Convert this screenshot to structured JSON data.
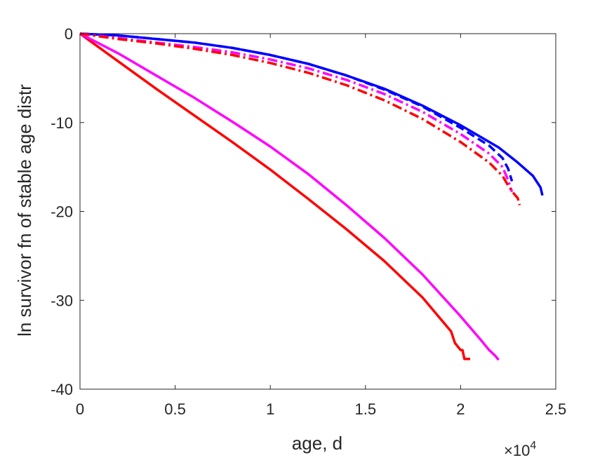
{
  "chart_data": {
    "type": "line",
    "xlabel": "age, d",
    "ylabel": "ln survivor fn of stable age distr",
    "x_multiplier_label": "×10",
    "x_multiplier_exponent": "4",
    "xlim": [
      0,
      2.5
    ],
    "ylim": [
      -40,
      0
    ],
    "x_ticks": [
      0,
      0.5,
      1,
      1.5,
      2,
      2.5
    ],
    "x_tick_labels": [
      "0",
      "0.5",
      "1",
      "1.5",
      "2",
      "2.5"
    ],
    "y_ticks": [
      0,
      -10,
      -20,
      -30,
      -40
    ],
    "y_tick_labels": [
      "0",
      "-10",
      "-20",
      "-30",
      "-40"
    ],
    "grid": false,
    "series": [
      {
        "color": "#ff0000",
        "style": "solid",
        "x": [
          0,
          0.2,
          0.4,
          0.6,
          0.8,
          1.0,
          1.2,
          1.4,
          1.6,
          1.8,
          1.95,
          1.97,
          2.0,
          2.01,
          2.02,
          2.05
        ],
        "y": [
          0,
          -3.1,
          -6.2,
          -9.2,
          -12.2,
          -15.3,
          -18.6,
          -22.0,
          -25.6,
          -29.7,
          -33.5,
          -34.8,
          -35.6,
          -35.6,
          -36.6,
          -36.6
        ]
      },
      {
        "color": "#ff00ff",
        "style": "solid",
        "x": [
          0,
          0.2,
          0.4,
          0.6,
          0.8,
          1.0,
          1.2,
          1.4,
          1.6,
          1.8,
          2.0,
          2.1,
          2.15,
          2.18,
          2.2
        ],
        "y": [
          0,
          -2.2,
          -4.7,
          -7.2,
          -9.9,
          -12.7,
          -15.8,
          -19.3,
          -23.0,
          -27.1,
          -31.8,
          -34.3,
          -35.6,
          -36.2,
          -36.7
        ]
      },
      {
        "color": "#0000ff",
        "style": "solid",
        "x": [
          0,
          0.2,
          0.4,
          0.6,
          0.8,
          1.0,
          1.2,
          1.4,
          1.6,
          1.8,
          2.0,
          2.2,
          2.3,
          2.38,
          2.42,
          2.43
        ],
        "y": [
          0,
          -0.2,
          -0.6,
          -1.0,
          -1.6,
          -2.4,
          -3.4,
          -4.7,
          -6.2,
          -8.1,
          -10.3,
          -12.8,
          -14.5,
          -16.0,
          -17.3,
          -18.2
        ]
      },
      {
        "color": "#0000ff",
        "style": "dashed",
        "x": [
          0,
          0.2,
          0.4,
          0.6,
          0.8,
          1.0,
          1.2,
          1.4,
          1.6,
          1.8,
          2.0,
          2.15,
          2.22,
          2.25,
          2.27
        ],
        "y": [
          0,
          -0.2,
          -0.6,
          -1.0,
          -1.6,
          -2.4,
          -3.4,
          -4.7,
          -6.3,
          -8.2,
          -10.6,
          -12.6,
          -14.0,
          -15.2,
          -16.6
        ]
      },
      {
        "color": "#ff00ff",
        "style": "dashdot",
        "x": [
          0,
          0.2,
          0.4,
          0.6,
          0.8,
          1.0,
          1.2,
          1.4,
          1.6,
          1.8,
          2.0,
          2.15,
          2.22,
          2.25,
          2.27
        ],
        "y": [
          0,
          -0.5,
          -1.0,
          -1.5,
          -2.1,
          -2.9,
          -3.9,
          -5.2,
          -6.8,
          -8.8,
          -11.3,
          -13.5,
          -15.0,
          -16.5,
          -17.8
        ]
      },
      {
        "color": "#ff0000",
        "style": "dashdot",
        "x": [
          0,
          0.2,
          0.4,
          0.6,
          0.8,
          1.0,
          1.2,
          1.4,
          1.6,
          1.8,
          2.0,
          2.15,
          2.22,
          2.25,
          2.28,
          2.3,
          2.31
        ],
        "y": [
          0,
          -0.6,
          -1.1,
          -1.7,
          -2.4,
          -3.3,
          -4.4,
          -5.8,
          -7.5,
          -9.6,
          -12.2,
          -14.5,
          -16.0,
          -17.1,
          -18.0,
          -18.5,
          -19.3
        ]
      }
    ]
  }
}
